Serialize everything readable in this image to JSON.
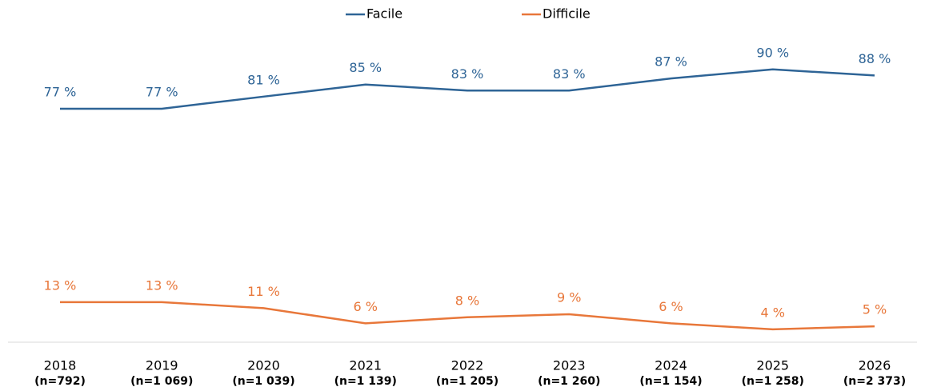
{
  "chart_data": {
    "type": "line",
    "categories": [
      "2018",
      "2019",
      "2020",
      "2021",
      "2022",
      "2023",
      "2024",
      "2025",
      "2026"
    ],
    "category_notes": [
      "(n=792)",
      "(n=1 069)",
      "(n=1 039)",
      "(n=1 139)",
      "(n=1 205)",
      "(n=1 260)",
      "(n=1 154)",
      "(n=1 258)",
      "(n=2 373)"
    ],
    "series": [
      {
        "name": "Facile",
        "color": "#2e6496",
        "values": [
          77,
          77,
          81,
          85,
          83,
          83,
          87,
          90,
          88
        ],
        "value_labels": [
          "77 %",
          "77 %",
          "81 %",
          "85 %",
          "83 %",
          "83 %",
          "87 %",
          "90 %",
          "88 %"
        ]
      },
      {
        "name": "Difficile",
        "color": "#e8773a",
        "values": [
          13,
          13,
          11,
          6,
          8,
          9,
          6,
          4,
          5
        ],
        "value_labels": [
          "13 %",
          "13 %",
          "11 %",
          "6 %",
          "8 %",
          "9 %",
          "6 %",
          "4 %",
          "5 %"
        ]
      }
    ],
    "ylim": [
      0,
      100
    ],
    "legend": "top"
  }
}
